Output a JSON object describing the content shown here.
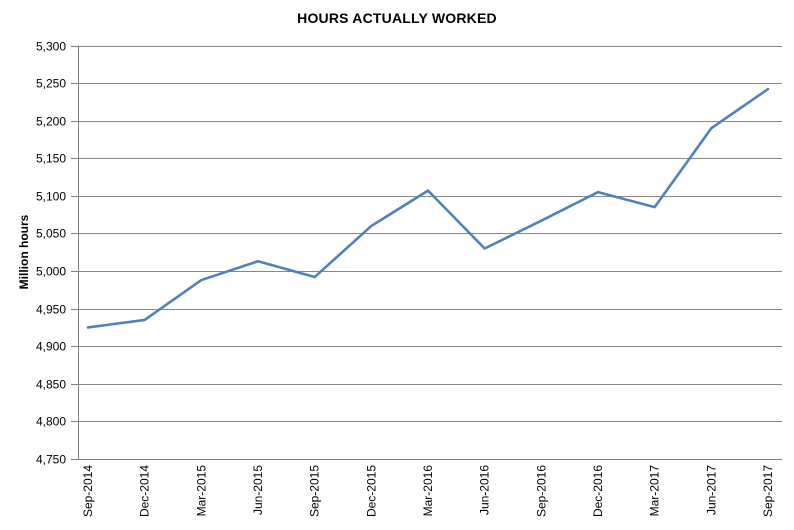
{
  "chart_data": {
    "type": "line",
    "title": "HOURS ACTUALLY WORKED",
    "ylabel": "Million hours",
    "xlabel": "",
    "categories": [
      "Sep-2014",
      "Dec-2014",
      "Mar-2015",
      "Jun-2015",
      "Sep-2015",
      "Dec-2015",
      "Mar-2016",
      "Jun-2016",
      "Sep-2016",
      "Dec-2016",
      "Mar-2017",
      "Jun-2017",
      "Sep-2017"
    ],
    "values": [
      4925,
      4935,
      4988,
      5013,
      4992,
      5060,
      5107,
      5030,
      5067,
      5105,
      5085,
      5190,
      5242
    ],
    "ylim": [
      4750,
      5300
    ],
    "ytick_step": 50,
    "y_tick_labels": [
      "4,750",
      "4,800",
      "4,850",
      "4,900",
      "4,950",
      "5,000",
      "5,050",
      "5,100",
      "5,150",
      "5,200",
      "5,250",
      "5,300"
    ],
    "grid": true,
    "legend": false,
    "x_label_rotation": -90,
    "colors": {
      "line": "#4F81BD",
      "gridline": "#878787",
      "axis": "#808080",
      "text": "#000000"
    }
  }
}
